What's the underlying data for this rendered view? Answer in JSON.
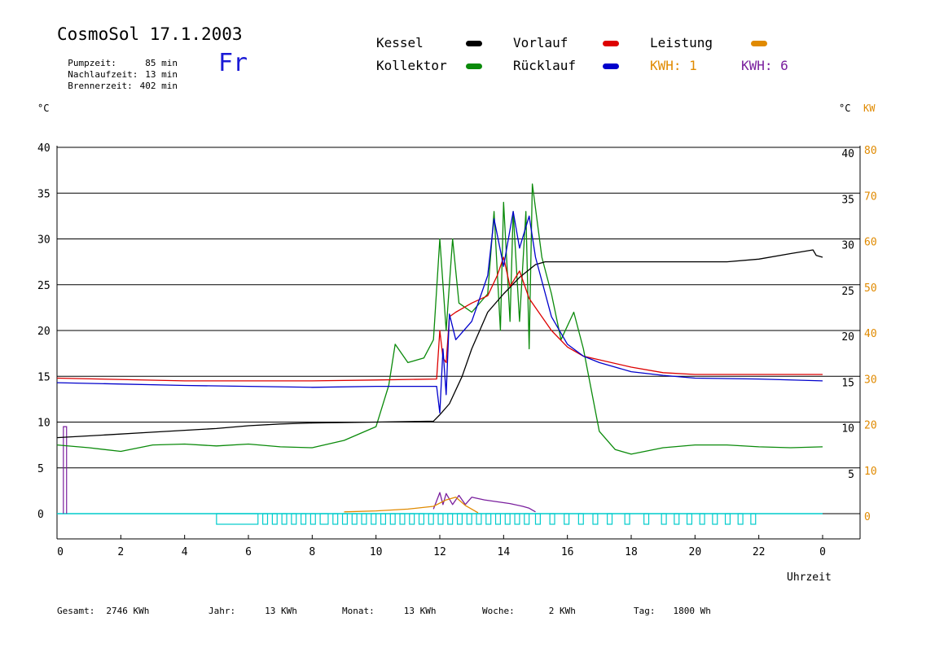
{
  "header": {
    "title": "CosmoSol 17.1.2003",
    "day": "Fr",
    "stats": [
      {
        "label": "Pumpzeit:",
        "value": "85 min"
      },
      {
        "label": "Nachlaufzeit:",
        "value": "13 min"
      },
      {
        "label": "Brennerzeit:",
        "value": "402 min"
      }
    ]
  },
  "legend": {
    "kessel": "Kessel",
    "kollektor": "Kollektor",
    "vorlauf": "Vorlauf",
    "ruecklauf": "Rücklauf",
    "leistung": "Leistung",
    "kwh1": "KWH: 1",
    "kwh6": "KWH: 6"
  },
  "units": {
    "left": "°C",
    "right_c": "°C",
    "right_kw": "KW",
    "xlabel": "Uhrzeit"
  },
  "footer": [
    {
      "label": "Gesamt:",
      "value": "2746 KWh"
    },
    {
      "label": "Jahr:",
      "value": "13 KWh"
    },
    {
      "label": "Monat:",
      "value": "13 KWh"
    },
    {
      "label": "Woche:",
      "value": "2 KWh"
    },
    {
      "label": "Tag:",
      "value": "1800 Wh"
    }
  ],
  "colors": {
    "kessel": "#000000",
    "kollektor": "#0a8a0a",
    "vorlauf": "#dd0000",
    "ruecklauf": "#0000cc",
    "leistung": "#e08a00",
    "kwh6": "#7a1f9e",
    "pump": "#00cccc",
    "grid": "#000000"
  },
  "chart_data": {
    "type": "line",
    "x_ticks": [
      "0",
      "2",
      "4",
      "6",
      "8",
      "10",
      "12",
      "14",
      "16",
      "18",
      "20",
      "22",
      "0"
    ],
    "y_left_ticks": [
      "0",
      "5",
      "10",
      "15",
      "20",
      "25",
      "30",
      "35",
      "40"
    ],
    "y_right_c_ticks": [
      "5",
      "10",
      "15",
      "20",
      "25",
      "30",
      "35",
      "40"
    ],
    "y_right_kw_ticks": [
      "0",
      "10",
      "20",
      "30",
      "40",
      "50",
      "60",
      "70",
      "80"
    ],
    "xlim": [
      0,
      24
    ],
    "ylim": [
      0,
      40
    ],
    "series": [
      {
        "name": "Kessel",
        "color_key": "kessel",
        "x": [
          0,
          1.5,
          3,
          5,
          6,
          7,
          8,
          10,
          11.8,
          12,
          12.3,
          12.7,
          13,
          13.5,
          14,
          14.5,
          15,
          15.3,
          16,
          18,
          20,
          21,
          22,
          23,
          23.7,
          23.8,
          24
        ],
        "y": [
          8.3,
          8.6,
          8.9,
          9.3,
          9.6,
          9.8,
          9.9,
          10,
          10.1,
          10.8,
          12,
          15,
          18,
          22,
          24,
          25.8,
          27.2,
          27.5,
          27.5,
          27.5,
          27.5,
          27.5,
          27.8,
          28.4,
          28.8,
          28.2,
          28
        ]
      },
      {
        "name": "Vorlauf",
        "color_key": "vorlauf",
        "x": [
          0,
          4,
          8,
          10,
          11.9,
          12,
          12.1,
          12.2,
          12.3,
          12.5,
          13,
          13.5,
          13.8,
          14,
          14.2,
          14.5,
          14.8,
          15,
          15.5,
          16,
          16.5,
          17,
          18,
          19,
          20,
          22,
          24
        ],
        "y": [
          14.8,
          14.5,
          14.5,
          14.6,
          14.7,
          20,
          17,
          16.5,
          21.5,
          22,
          23,
          23.8,
          26,
          28,
          24.8,
          26.5,
          23.5,
          22.5,
          20,
          18.2,
          17.2,
          16.8,
          16,
          15.4,
          15.2,
          15.2,
          15.2
        ]
      },
      {
        "name": "Rücklauf",
        "color_key": "ruecklauf",
        "x": [
          0,
          4,
          8,
          10,
          11.9,
          12,
          12.1,
          12.2,
          12.3,
          12.5,
          13,
          13.5,
          13.7,
          14,
          14.3,
          14.5,
          14.8,
          15,
          15.5,
          16,
          16.5,
          17,
          18,
          19,
          20,
          22,
          24
        ],
        "y": [
          14.3,
          14,
          13.8,
          13.9,
          13.9,
          11,
          18,
          13,
          21.8,
          19,
          21,
          26,
          32.2,
          27,
          33,
          29,
          32.5,
          28,
          21.5,
          18.5,
          17.2,
          16.5,
          15.5,
          15.1,
          14.8,
          14.7,
          14.5
        ]
      },
      {
        "name": "Kollektor",
        "color_key": "kollektor",
        "x": [
          0,
          1,
          2,
          3,
          4,
          5,
          6,
          7,
          8,
          9,
          10,
          10.4,
          10.6,
          11,
          11.5,
          11.8,
          12,
          12.2,
          12.4,
          12.6,
          13,
          13.5,
          13.7,
          13.9,
          14,
          14.2,
          14.3,
          14.5,
          14.7,
          14.8,
          14.9,
          15.2,
          15.5,
          15.8,
          16.2,
          16.5,
          17,
          17.5,
          18,
          19,
          20,
          21,
          22,
          23,
          24
        ],
        "y": [
          7.5,
          7.2,
          6.8,
          7.5,
          7.6,
          7.4,
          7.6,
          7.3,
          7.2,
          8,
          9.5,
          14,
          18.5,
          16.5,
          17,
          19,
          30,
          20,
          30,
          23,
          22,
          24,
          33,
          20,
          34,
          21,
          33,
          21,
          33,
          18,
          36,
          28,
          24,
          19,
          22,
          18,
          9,
          7,
          6.5,
          7.2,
          7.5,
          7.5,
          7.3,
          7.2,
          7.3
        ]
      },
      {
        "name": "KWH: 6",
        "color_key": "kwh6",
        "x": [
          11.8,
          12,
          12.1,
          12.2,
          12.4,
          12.6,
          12.8,
          13,
          13.4,
          13.8,
          14.2,
          14.6,
          14.8,
          15
        ],
        "y": [
          0.5,
          2.3,
          1,
          2.2,
          1,
          2,
          1,
          1.8,
          1.5,
          1.3,
          1.1,
          0.8,
          0.6,
          0.2
        ]
      },
      {
        "name": "Leistung",
        "color_key": "leistung",
        "x": [
          9,
          10,
          11,
          11.8,
          12.2,
          12.5,
          12.8,
          13.2
        ],
        "y": [
          0.2,
          0.3,
          0.5,
          0.8,
          1.5,
          1.8,
          0.9,
          0.1
        ]
      }
    ],
    "pump_intervals": [
      [
        5,
        6.3
      ],
      [
        6.45,
        6.6
      ],
      [
        6.75,
        6.9
      ],
      [
        7.05,
        7.2
      ],
      [
        7.35,
        7.5
      ],
      [
        7.65,
        7.8
      ],
      [
        7.95,
        8.1
      ],
      [
        8.25,
        8.5
      ],
      [
        8.65,
        8.8
      ],
      [
        8.95,
        9.1
      ],
      [
        9.25,
        9.4
      ],
      [
        9.55,
        9.7
      ],
      [
        9.85,
        10
      ],
      [
        10.15,
        10.3
      ],
      [
        10.45,
        10.6
      ],
      [
        10.75,
        10.9
      ],
      [
        11.05,
        11.2
      ],
      [
        11.35,
        11.5
      ],
      [
        11.65,
        11.8
      ],
      [
        11.95,
        12.1
      ],
      [
        12.25,
        12.4
      ],
      [
        12.55,
        12.7
      ],
      [
        12.85,
        13
      ],
      [
        13.15,
        13.3
      ],
      [
        13.45,
        13.6
      ],
      [
        13.75,
        13.9
      ],
      [
        14.05,
        14.2
      ],
      [
        14.35,
        14.5
      ],
      [
        14.65,
        14.8
      ],
      [
        15.0,
        15.15
      ],
      [
        15.45,
        15.6
      ],
      [
        15.9,
        16.05
      ],
      [
        16.35,
        16.5
      ],
      [
        16.8,
        16.95
      ],
      [
        17.25,
        17.4
      ],
      [
        17.8,
        17.95
      ],
      [
        18.4,
        18.55
      ],
      [
        18.95,
        19.1
      ],
      [
        19.35,
        19.5
      ],
      [
        19.75,
        19.9
      ],
      [
        20.15,
        20.3
      ],
      [
        20.55,
        20.7
      ],
      [
        20.95,
        21.1
      ],
      [
        21.35,
        21.5
      ],
      [
        21.75,
        21.9
      ]
    ],
    "grid": true,
    "legend_position": "top"
  }
}
